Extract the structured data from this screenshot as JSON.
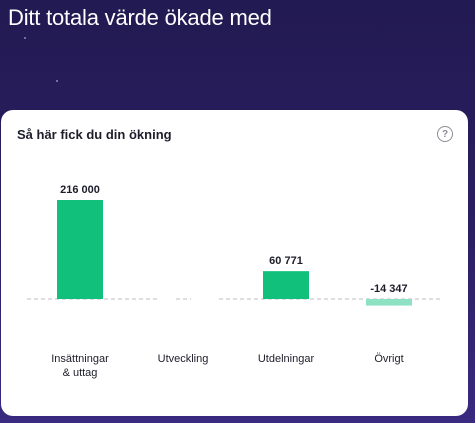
{
  "header": {
    "title": "Ditt totala värde ökade med"
  },
  "card": {
    "title": "Så här fick du din ökning",
    "help_icon": "question-circle-icon"
  },
  "colors": {
    "positive": "#11c07a",
    "negative": "#8fe1c3",
    "dashed": "#bdbdc5",
    "background": "#261d5c"
  },
  "chart_data": {
    "type": "bar",
    "categories": [
      "Insättningar\n& uttag",
      "Utveckling",
      "Utdelningar",
      "Övrigt"
    ],
    "values": [
      216000,
      0,
      60771,
      -14347
    ],
    "value_labels": [
      "216 000",
      "",
      "60 771",
      "-14 347"
    ],
    "title": "Så här fick du din ökning",
    "xlabel": "",
    "ylabel": "",
    "baseline_dashed": true
  }
}
